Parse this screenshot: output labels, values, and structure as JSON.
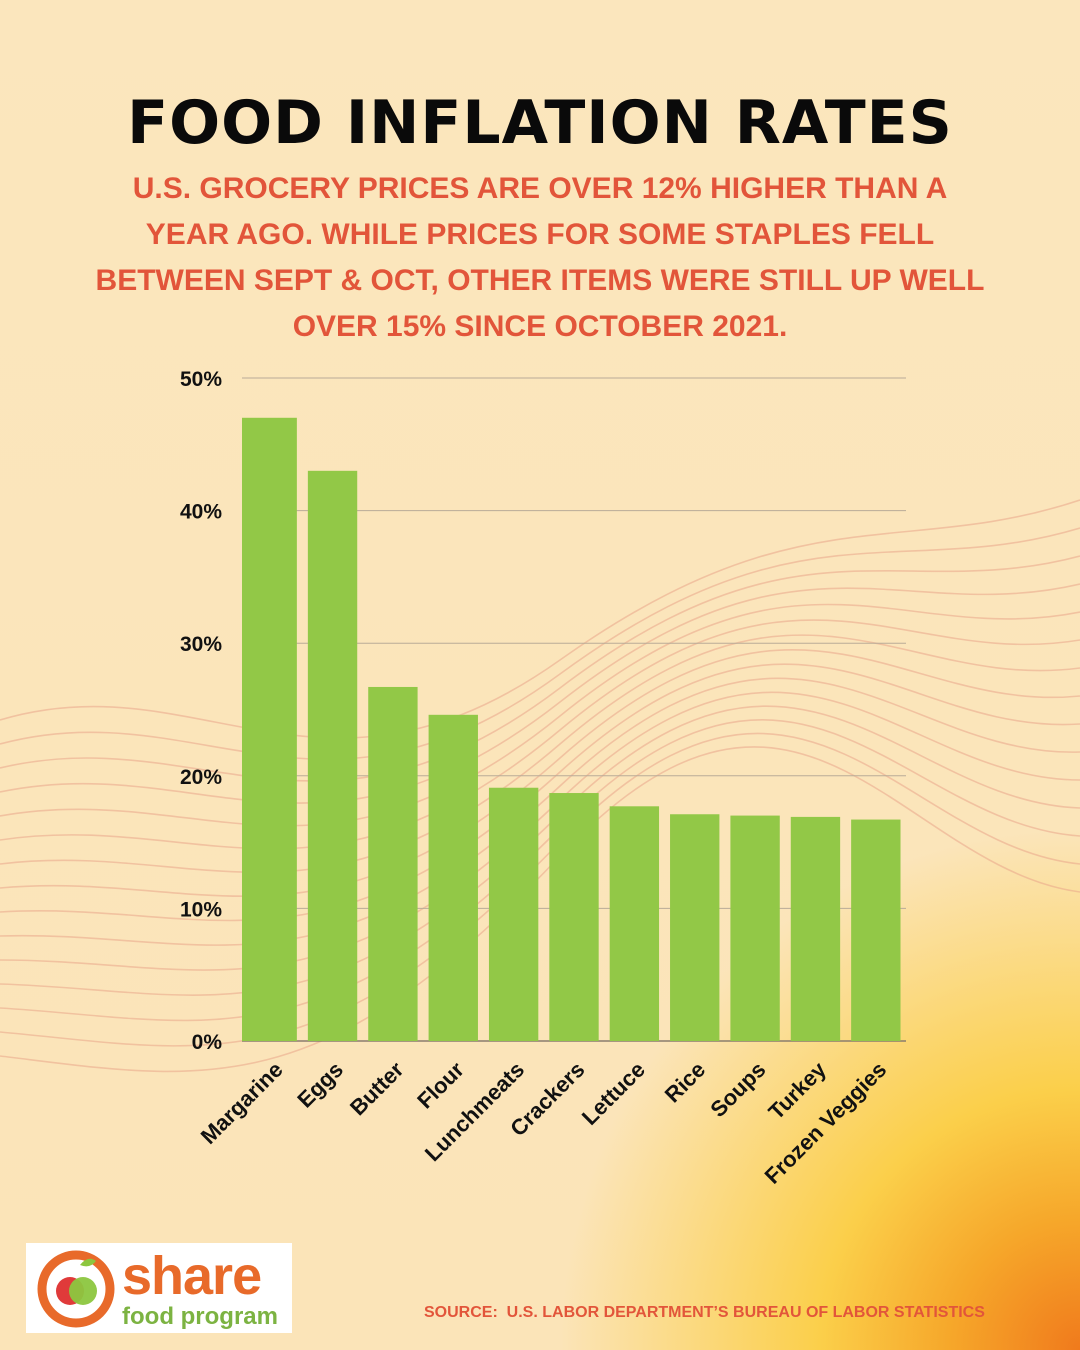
{
  "header": {
    "title": "FOOD INFLATION RATES",
    "subtitle": "U.S. GROCERY PRICES ARE OVER 12% HIGHER THAN A YEAR AGO. WHILE PRICES FOR SOME STAPLES FELL BETWEEN SEPT & OCT, OTHER ITEMS WERE STILL UP WELL OVER 15% SINCE OCTOBER 2021."
  },
  "colors": {
    "bar": "#92c847",
    "title": "#0a0a0a",
    "accent": "#e2553a",
    "grid": "#b9ab98"
  },
  "chart_data": {
    "type": "bar",
    "title": "FOOD INFLATION RATES",
    "categories": [
      "Margarine",
      "Eggs",
      "Butter",
      "Flour",
      "Lunchmeats",
      "Crackers",
      "Lettuce",
      "Rice",
      "Soups",
      "Turkey",
      "Frozen Veggies"
    ],
    "values": [
      47.0,
      43.0,
      26.7,
      24.6,
      19.1,
      18.7,
      17.7,
      17.1,
      17.0,
      16.9,
      16.7
    ],
    "value_format": "percent",
    "ylim": [
      0,
      50
    ],
    "yticks": [
      0,
      10,
      20,
      30,
      40,
      50
    ],
    "ytick_labels": [
      "0%",
      "10%",
      "20%",
      "30%",
      "40%",
      "50%"
    ],
    "grid": true,
    "xlabel": "",
    "ylabel": ""
  },
  "logo": {
    "word": "share",
    "sub": "food program",
    "icon": "apple-logo-icon"
  },
  "footer": {
    "source": "SOURCE:  U.S. LABOR DEPARTMENT’S BUREAU OF LABOR STATISTICS"
  }
}
